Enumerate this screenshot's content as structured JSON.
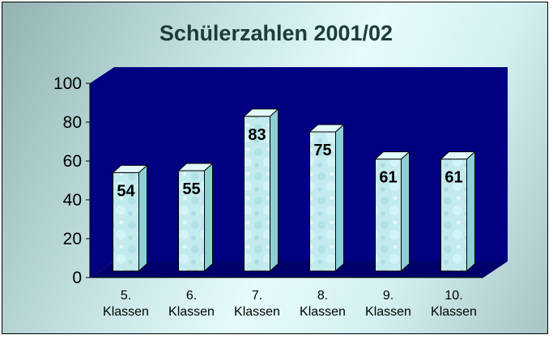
{
  "chart_data": {
    "type": "bar",
    "title": "Schülerzahlen 2001/02",
    "categories": [
      [
        "5.",
        "Klassen"
      ],
      [
        "6.",
        "Klassen"
      ],
      [
        "7.",
        "Klassen"
      ],
      [
        "8.",
        "Klassen"
      ],
      [
        "9.",
        "Klassen"
      ],
      [
        "10.",
        "Klassen"
      ]
    ],
    "values": [
      54,
      55,
      83,
      75,
      61,
      61
    ],
    "ylim": [
      0,
      100
    ],
    "yticks": [
      0,
      20,
      40,
      60,
      80,
      100
    ],
    "xlabel": "",
    "ylabel": "",
    "grid": false,
    "colors": {
      "plot_back": "#000080",
      "floor": "#00006a",
      "bar_front": "#bfe9ec",
      "bar_side": "#8ecfd6",
      "bar_top": "#e2f8fa"
    }
  }
}
